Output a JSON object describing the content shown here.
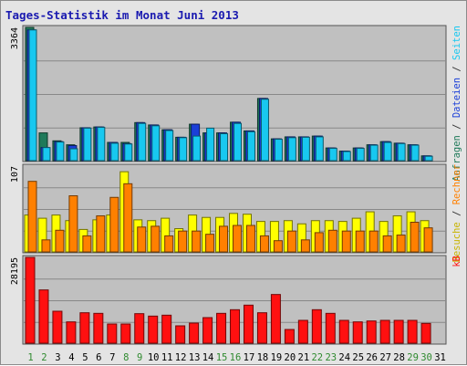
{
  "title": "Tages-Statistik im Monat Juni 2013",
  "colors": {
    "panel_bg": "#c0c0c0",
    "frame_bg": "#e4e4e4",
    "title": "#1a1ab0",
    "weekday": "#000000",
    "weekend": "#2f8a2f",
    "hits": "#1f7a5a",
    "files": "#1b3fd8",
    "pages": "#18c8f0",
    "visits": "#ffff00",
    "sites": "#ff8000",
    "kbytes": "#ff1010"
  },
  "chart_data": [
    {
      "type": "bar",
      "name": "upper",
      "ymax_label": "3364",
      "ylim": [
        0,
        3364
      ],
      "legend": [
        "Anfragen",
        "Dateien",
        "Seiten"
      ],
      "categories": [
        "1",
        "2",
        "3",
        "4",
        "5",
        "6",
        "7",
        "8",
        "9",
        "10",
        "11",
        "12",
        "13",
        "14",
        "15",
        "16",
        "17",
        "18",
        "19",
        "20",
        "21",
        "22",
        "23",
        "24",
        "25",
        "26",
        "27",
        "28",
        "29",
        "30",
        "31"
      ],
      "series": [
        {
          "name": "Anfragen",
          "values": [
            3364,
            700,
            500,
            400,
            830,
            850,
            460,
            460,
            960,
            900,
            780,
            590,
            920,
            700,
            700,
            970,
            750,
            1570,
            550,
            600,
            600,
            620,
            320,
            240,
            320,
            400,
            480,
            440,
            400,
            120,
            0
          ]
        },
        {
          "name": "Dateien",
          "values": [
            3300,
            330,
            480,
            380,
            830,
            850,
            460,
            430,
            960,
            900,
            780,
            590,
            920,
            700,
            700,
            970,
            750,
            1570,
            550,
            600,
            600,
            620,
            320,
            240,
            320,
            400,
            480,
            440,
            400,
            120,
            0
          ]
        },
        {
          "name": "Seiten",
          "values": [
            3300,
            330,
            470,
            300,
            820,
            840,
            440,
            420,
            940,
            880,
            760,
            580,
            620,
            820,
            680,
            940,
            730,
            1550,
            540,
            580,
            590,
            600,
            310,
            230,
            310,
            390,
            460,
            430,
            390,
            110,
            0
          ]
        }
      ]
    },
    {
      "type": "bar",
      "name": "middle",
      "ymax_label": "107",
      "ylim": [
        0,
        107
      ],
      "legend": [
        "Besuche",
        "Rechner"
      ],
      "categories": [
        "1",
        "2",
        "3",
        "4",
        "5",
        "6",
        "7",
        "8",
        "9",
        "10",
        "11",
        "12",
        "13",
        "14",
        "15",
        "16",
        "17",
        "18",
        "19",
        "20",
        "21",
        "22",
        "23",
        "24",
        "25",
        "26",
        "27",
        "28",
        "29",
        "30",
        "31"
      ],
      "series": [
        {
          "name": "Besuche",
          "values": [
            46,
            42,
            46,
            39,
            28,
            40,
            46,
            100,
            40,
            39,
            42,
            29,
            46,
            43,
            43,
            48,
            47,
            38,
            38,
            39,
            35,
            39,
            39,
            38,
            42,
            50,
            38,
            45,
            50,
            39,
            0
          ]
        },
        {
          "name": "Rechner",
          "values": [
            88,
            15,
            27,
            70,
            20,
            45,
            68,
            85,
            31,
            32,
            20,
            26,
            26,
            22,
            32,
            33,
            33,
            20,
            14,
            26,
            15,
            24,
            27,
            26,
            26,
            26,
            20,
            21,
            37,
            30,
            0
          ]
        }
      ]
    },
    {
      "type": "bar",
      "name": "lower",
      "ymax_label": "28195",
      "ylim": [
        0,
        28195
      ],
      "legend": [
        "kB"
      ],
      "categories": [
        "1",
        "2",
        "3",
        "4",
        "5",
        "6",
        "7",
        "8",
        "9",
        "10",
        "11",
        "12",
        "13",
        "14",
        "15",
        "16",
        "17",
        "18",
        "19",
        "20",
        "21",
        "22",
        "23",
        "24",
        "25",
        "26",
        "27",
        "28",
        "29",
        "30",
        "31"
      ],
      "series": [
        {
          "name": "kB",
          "values": [
            28195,
            17500,
            10500,
            7000,
            10000,
            9800,
            6300,
            6300,
            9700,
            8900,
            9200,
            5700,
            6600,
            8400,
            9800,
            11000,
            12500,
            10000,
            16000,
            4500,
            7500,
            11000,
            9800,
            7500,
            7000,
            7300,
            7500,
            7500,
            7500,
            6500,
            0
          ]
        }
      ]
    }
  ],
  "days": [
    "1",
    "2",
    "3",
    "4",
    "5",
    "6",
    "7",
    "8",
    "9",
    "10",
    "11",
    "12",
    "13",
    "14",
    "15",
    "16",
    "17",
    "18",
    "19",
    "20",
    "21",
    "22",
    "23",
    "24",
    "25",
    "26",
    "27",
    "28",
    "29",
    "30",
    "31"
  ],
  "weekend_days": [
    "1",
    "2",
    "8",
    "9",
    "15",
    "16",
    "22",
    "23",
    "29",
    "30"
  ]
}
